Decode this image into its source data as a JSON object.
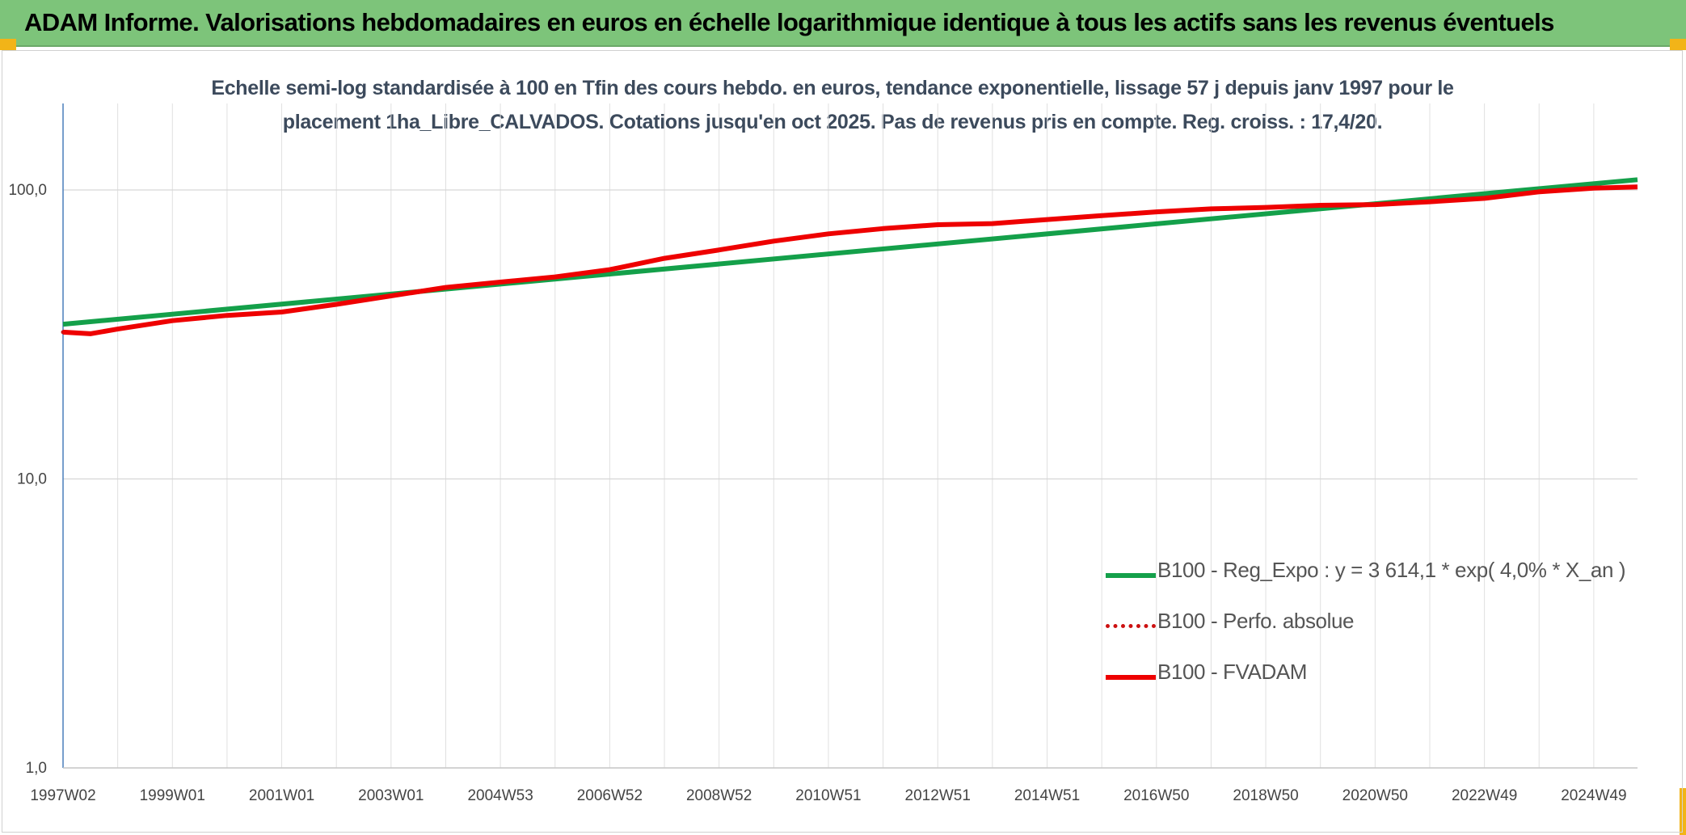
{
  "banner": {
    "title": "ADAM Informe. Valorisations hebdomadaires en euros en échelle logarithmique identique à tous les actifs sans les revenus éventuels"
  },
  "colors": {
    "banner": "#7dc47a",
    "corner_accent": "#f2b418",
    "reg_expo": "#14a04a",
    "fvadam": "#ee0000",
    "perfo": "#cc1111",
    "axis": "#4a7ebb",
    "grid": "#e0e0e0"
  },
  "chart_data": {
    "type": "line",
    "title_lines": [
      "Echelle semi-log standardisée à 100 en Tfin des cours hebdo. en euros, tendance exponentielle, lissage 57 j depuis janv 1997 pour le",
      "placement 1ha_Libre_CALVADOS. Cotations jusqu'en oct 2025. Pas de revenus pris en compte. Reg. croiss. : 17,4/20."
    ],
    "y_scale": "log",
    "ylim": [
      1,
      200
    ],
    "y_ticks": [
      1,
      10,
      100
    ],
    "y_tick_labels": [
      "1,0",
      "10,0",
      "100,0"
    ],
    "x_range": [
      1997.0,
      2025.8
    ],
    "x_ticks": [
      {
        "x": 1997.0,
        "label": "1997W02"
      },
      {
        "x": 1999.0,
        "label": "1999W01"
      },
      {
        "x": 2001.0,
        "label": "2001W01"
      },
      {
        "x": 2003.0,
        "label": "2003W01"
      },
      {
        "x": 2005.0,
        "label": "2004W53"
      },
      {
        "x": 2007.0,
        "label": "2006W52"
      },
      {
        "x": 2009.0,
        "label": "2008W52"
      },
      {
        "x": 2011.0,
        "label": "2010W51"
      },
      {
        "x": 2013.0,
        "label": "2012W51"
      },
      {
        "x": 2015.0,
        "label": "2014W51"
      },
      {
        "x": 2017.0,
        "label": "2016W50"
      },
      {
        "x": 2019.0,
        "label": "2018W50"
      },
      {
        "x": 2021.0,
        "label": "2020W50"
      },
      {
        "x": 2023.0,
        "label": "2022W49"
      },
      {
        "x": 2025.0,
        "label": "2024W49"
      }
    ],
    "minor_gridlines": [
      1998,
      2000,
      2002,
      2004,
      2006,
      2008,
      2010,
      2012,
      2014,
      2016,
      2018,
      2020,
      2022,
      2024
    ],
    "grid": true,
    "legend_position": "right",
    "series": [
      {
        "name": "B100 - Reg_Expo : y = 3 614,1 * exp( 4,0% *  X_an )",
        "style": "solid-thick",
        "color": "#14a04a",
        "x": [
          1997.0,
          2025.8
        ],
        "y": [
          34.3,
          108.5
        ]
      },
      {
        "name": "B100 - Perfo. absolue",
        "style": "dotted",
        "color": "#cc1111",
        "x": [
          1997.0,
          1997.5,
          1998.0,
          1999.0,
          2000.0,
          2001.0,
          2002.0,
          2003.0,
          2004.0,
          2005.0,
          2006.0,
          2007.0,
          2008.0,
          2009.0,
          2010.0,
          2011.0,
          2012.0,
          2013.0,
          2014.0,
          2015.0,
          2016.0,
          2017.0,
          2018.0,
          2019.0,
          2020.0,
          2021.0,
          2022.0,
          2023.0,
          2024.0,
          2025.0,
          2025.8
        ],
        "y": [
          32.2,
          31.8,
          33.0,
          35.3,
          36.8,
          37.8,
          40.2,
          43.0,
          46.0,
          48.0,
          50.0,
          53.0,
          58.0,
          62.0,
          66.5,
          70.5,
          73.5,
          75.8,
          76.5,
          79.0,
          81.5,
          84.0,
          86.0,
          87.0,
          88.5,
          89.0,
          91.0,
          93.5,
          98.5,
          101.5,
          102.5
        ]
      },
      {
        "name": "B100 - FVADAM",
        "style": "solid-thick",
        "color": "#ee0000",
        "x": [
          1997.0,
          1997.5,
          1998.0,
          1999.0,
          2000.0,
          2001.0,
          2002.0,
          2003.0,
          2004.0,
          2005.0,
          2006.0,
          2007.0,
          2008.0,
          2009.0,
          2010.0,
          2011.0,
          2012.0,
          2013.0,
          2014.0,
          2015.0,
          2016.0,
          2017.0,
          2018.0,
          2019.0,
          2020.0,
          2021.0,
          2022.0,
          2023.0,
          2024.0,
          2025.0,
          2025.8
        ],
        "y": [
          32.2,
          31.8,
          33.0,
          35.3,
          36.8,
          37.8,
          40.2,
          43.0,
          46.0,
          48.0,
          50.0,
          53.0,
          58.0,
          62.0,
          66.5,
          70.5,
          73.5,
          75.8,
          76.5,
          79.0,
          81.5,
          84.0,
          86.0,
          87.0,
          88.5,
          89.0,
          91.0,
          93.5,
          98.5,
          101.5,
          102.5
        ]
      }
    ]
  }
}
